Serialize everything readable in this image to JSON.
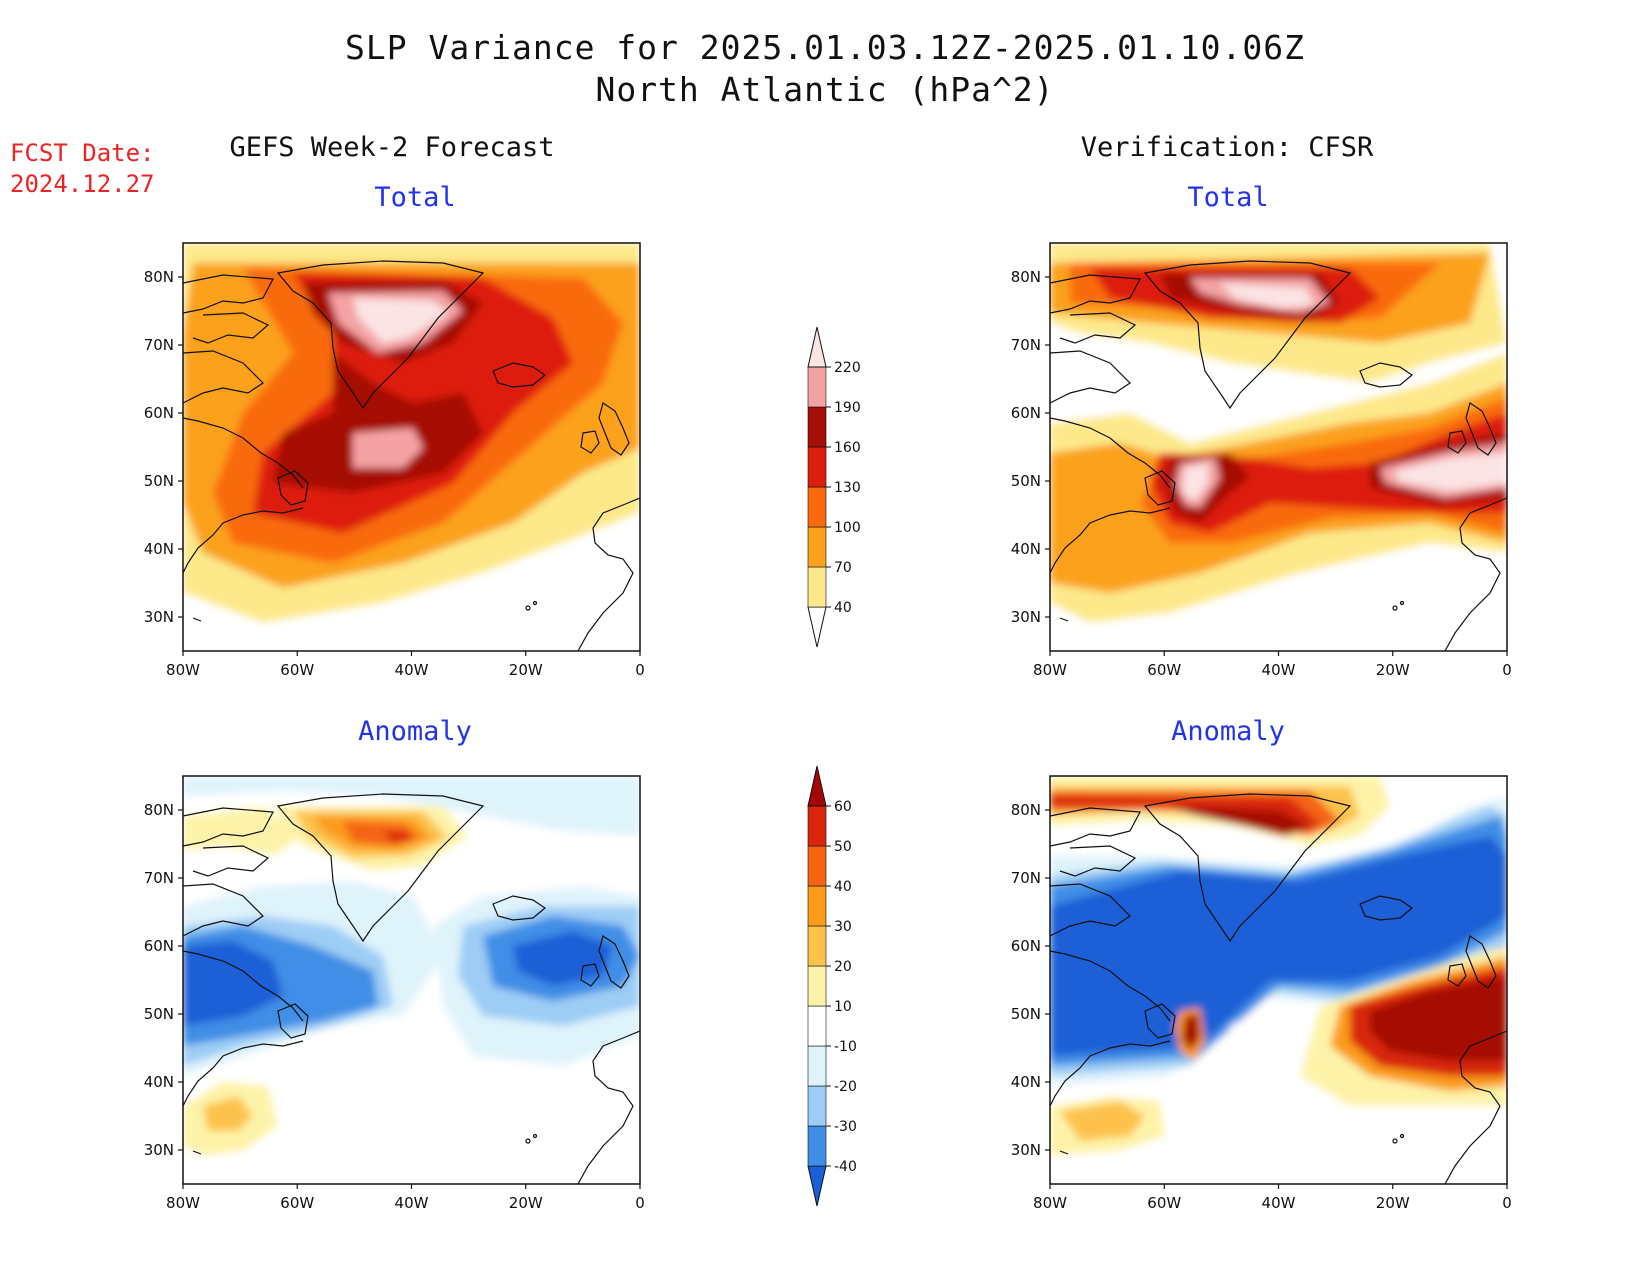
{
  "header": {
    "title_line1": "SLP Variance for 2025.01.03.12Z-2025.01.10.06Z",
    "title_line2": "North Atlantic (hPa^2)",
    "fcst_label": "FCST Date:",
    "fcst_date": "2024.12.27"
  },
  "columns": {
    "left": "GEFS Week-2 Forecast",
    "right": "Verification: CFSR"
  },
  "panels": {
    "total_label": "Total",
    "anomaly_label": "Anomaly"
  },
  "axes": {
    "lat_ticks": [
      "80N",
      "70N",
      "60N",
      "50N",
      "40N",
      "30N"
    ],
    "lon_ticks": [
      "80W",
      "60W",
      "40W",
      "20W",
      "0"
    ],
    "lat_range": [
      25,
      85
    ],
    "lon_range": [
      -80,
      0
    ]
  },
  "colorbars": {
    "total": {
      "levels": [
        "40",
        "70",
        "100",
        "130",
        "160",
        "190",
        "220"
      ],
      "colors": [
        "#fde98a",
        "#fba11c",
        "#f96a10",
        "#dd1d0d",
        "#a50e06",
        "#f4a3a3",
        "#fbe4e4"
      ]
    },
    "anomaly": {
      "levels": [
        "-40",
        "-30",
        "-20",
        "-10",
        "10",
        "20",
        "30",
        "40",
        "50",
        "60"
      ],
      "colors": [
        "#1a5fd6",
        "#3f8ee6",
        "#9dcdf5",
        "#dff3fb",
        "#ffffff",
        "#fdf3a8",
        "#fdc24b",
        "#fb9b1a",
        "#f56413",
        "#d8250b",
        "#a40706"
      ]
    }
  }
}
